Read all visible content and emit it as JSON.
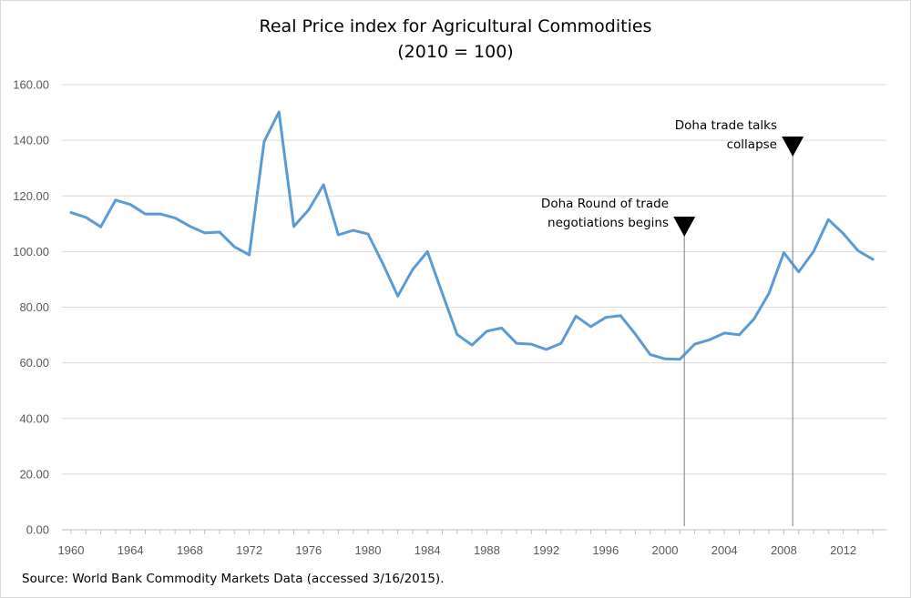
{
  "chart_data": {
    "type": "line",
    "title": "Real Price index for Agricultural Commodities",
    "subtitle": "(2010 = 100)",
    "xlabel": "",
    "ylabel": "",
    "xlim": [
      1960,
      2014
    ],
    "ylim": [
      0,
      160
    ],
    "grid": true,
    "y_ticks": [
      "0.00",
      "20.00",
      "40.00",
      "60.00",
      "80.00",
      "100.00",
      "120.00",
      "140.00",
      "160.00"
    ],
    "x_ticks": [
      "1960",
      "1964",
      "1968",
      "1972",
      "1976",
      "1980",
      "1984",
      "1988",
      "1992",
      "1996",
      "2000",
      "2004",
      "2008",
      "2012"
    ],
    "series": [
      {
        "color": "#5b9bd5",
        "x": [
          1960,
          1961,
          1962,
          1963,
          1964,
          1965,
          1966,
          1967,
          1968,
          1969,
          1970,
          1971,
          1972,
          1973,
          1974,
          1975,
          1976,
          1977,
          1978,
          1979,
          1980,
          1981,
          1982,
          1983,
          1984,
          1985,
          1986,
          1987,
          1988,
          1989,
          1990,
          1991,
          1992,
          1993,
          1994,
          1995,
          1996,
          1997,
          1998,
          1999,
          2000,
          2001,
          2002,
          2003,
          2004,
          2005,
          2006,
          2007,
          2008,
          2009,
          2010,
          2011,
          2012,
          2013,
          2014
        ],
        "values": [
          114,
          112.3,
          108.9,
          118.5,
          116.9,
          113.5,
          113.5,
          112.1,
          109.1,
          106.7,
          107,
          101.7,
          98.8,
          139.5,
          150.2,
          109,
          115,
          124,
          106,
          107.6,
          106.3,
          95.6,
          84,
          93.5,
          100,
          85,
          70.2,
          66.4,
          71.4,
          72.5,
          67,
          66.7,
          64.8,
          67,
          76.8,
          73,
          76.3,
          77,
          70.3,
          63,
          61.4,
          61.3,
          66.7,
          68.3,
          70.7,
          70.1,
          75.8,
          85,
          99.6,
          92.7,
          100,
          111.5,
          106.5,
          100.3,
          97.2
        ]
      }
    ],
    "annotations": [
      {
        "label_lines": [
          "Doha Round of trade",
          "negotiations begins"
        ],
        "x": 2001.3
      },
      {
        "label_lines": [
          "Doha trade talks",
          "collapse"
        ],
        "x": 2008.6
      }
    ]
  },
  "source": "Source: World Bank Commodity Markets Data (accessed 3/16/2015)."
}
